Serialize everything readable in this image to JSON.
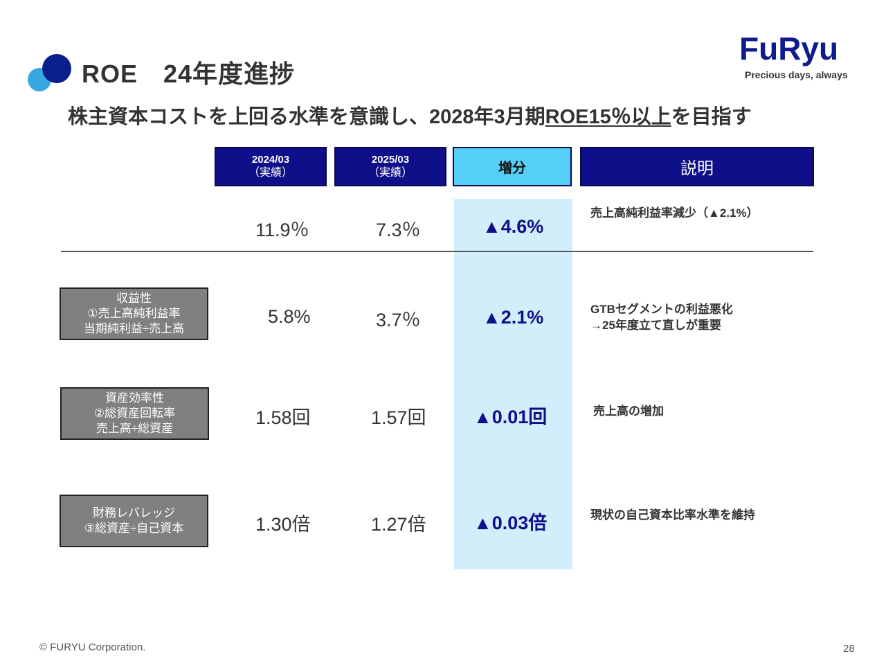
{
  "title": "ROE　24年度進捗",
  "subtitle": {
    "before": "株主資本コストを上回る水準を意識し、2028年3月期",
    "underlined": "ROE15％以上",
    "after": "を目指す"
  },
  "logo": {
    "brand": "FuRyu",
    "tagline": "Precious days, always"
  },
  "columns": {
    "fy2024": {
      "period": "2024/03",
      "note": "（実績）"
    },
    "fy2025": {
      "period": "2025/03",
      "note": "（実績）"
    },
    "change": "増分",
    "description": "説明"
  },
  "rows": [
    {
      "label": [],
      "v2024": "11.9％",
      "v2025": "7.3％",
      "change": "▲4.6%",
      "desc": [
        "売上高純利益率減少（▲2.1%）"
      ]
    },
    {
      "label": [
        "収益性",
        "①売上高純利益率",
        "当期純利益÷売上高"
      ],
      "v2024": "5.8%",
      "v2025": "3.7％",
      "change": "▲2.1%",
      "desc": [
        "GTBセグメントの利益悪化",
        "→25年度立て直しが重要"
      ]
    },
    {
      "label": [
        "資産効率性",
        "②総資産回転率",
        "売上高÷総資産"
      ],
      "v2024": "1.58回",
      "v2025": "1.57回",
      "change": "▲0.01回",
      "desc": [
        "売上高の増加"
      ]
    },
    {
      "label": [
        "財務レバレッジ",
        "③総資産÷自己資本"
      ],
      "v2024": "1.30倍",
      "v2025": "1.27倍",
      "change": "▲0.03倍",
      "desc": [
        "現状の自己資本比率水準を維持"
      ]
    }
  ],
  "footer": {
    "copyright": "© FURYU Corporation.",
    "page": "28"
  },
  "colors": {
    "navy": "#0f0f8a",
    "highlight": "#d3eefb",
    "header_accent": "#55cff7",
    "label_bg": "#808080",
    "dot_dark": "#0b1f8c",
    "dot_light": "#37a9e0"
  }
}
